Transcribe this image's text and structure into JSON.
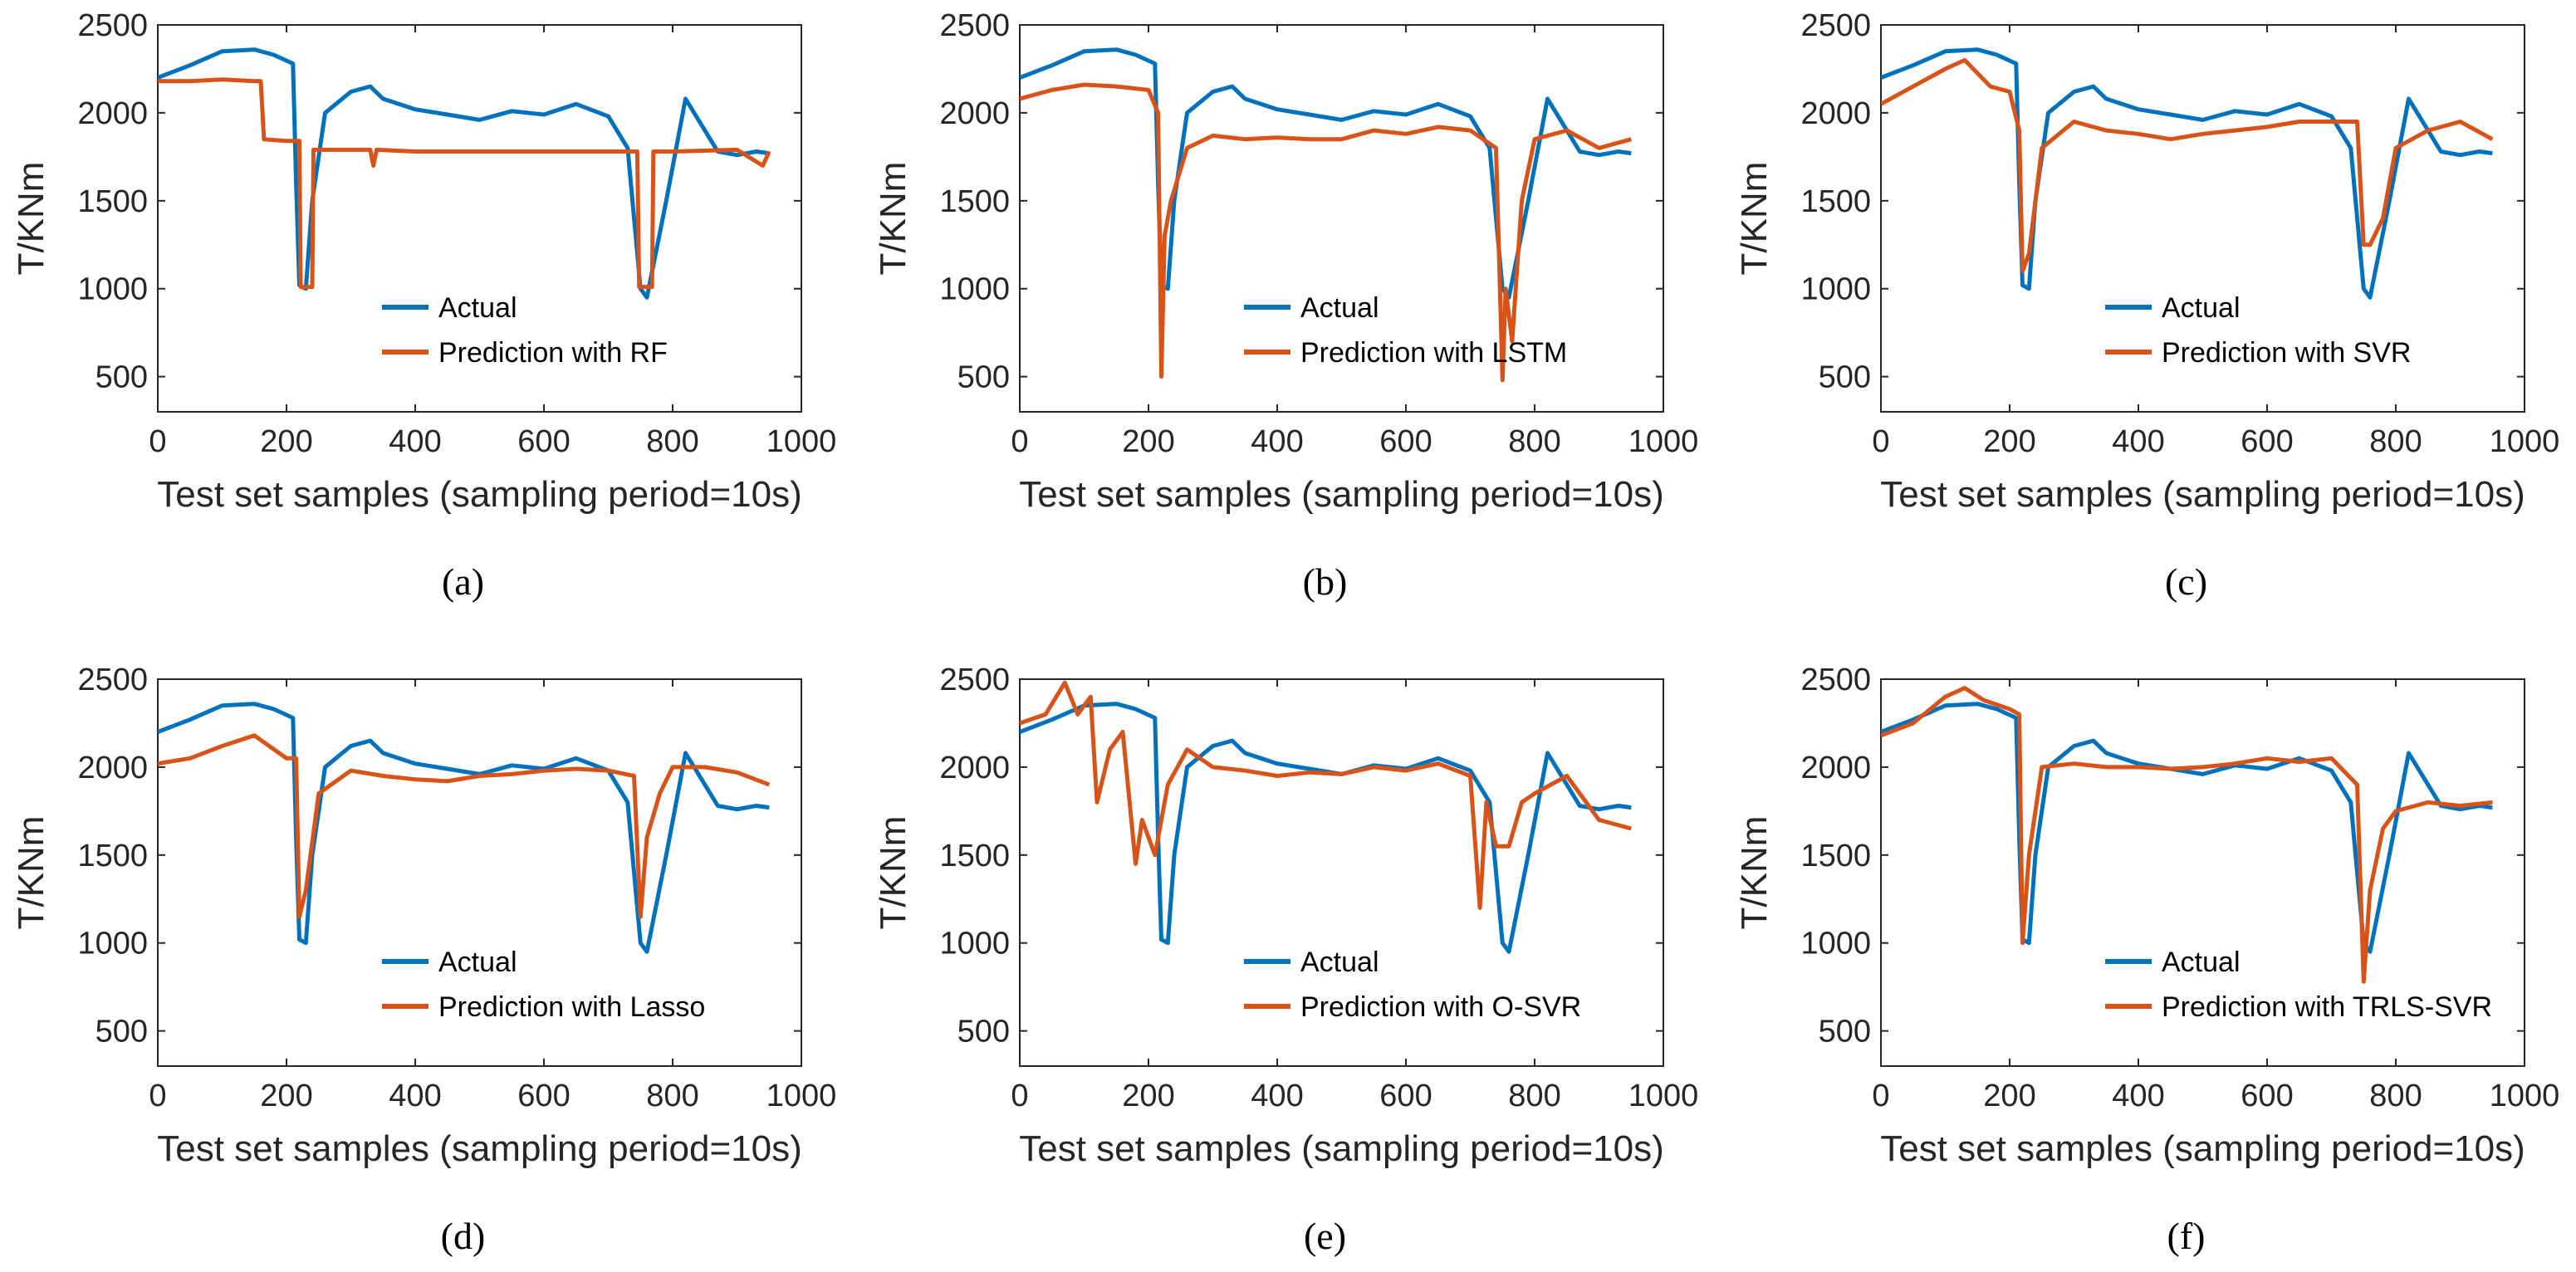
{
  "figure": {
    "series_colors": {
      "actual": "#0072BD",
      "prediction": "#D95319"
    }
  },
  "chart_data": [
    {
      "type": "line",
      "panel_label": "(a)",
      "title": "",
      "xlabel": "Test set samples (sampling period=10s)",
      "ylabel": "T/KNm",
      "xlim": [
        0,
        1000
      ],
      "ylim": [
        300,
        2500
      ],
      "xticks": [
        "0",
        "200",
        "400",
        "600",
        "800",
        "1000"
      ],
      "yticks": [
        "500",
        "1000",
        "1500",
        "2000",
        "2500"
      ],
      "grid": false,
      "legend_position": "bottom-right",
      "series": [
        {
          "name": "Actual",
          "color": "#0072BD",
          "x": [
            0,
            50,
            100,
            150,
            180,
            210,
            215,
            220,
            230,
            240,
            260,
            300,
            330,
            350,
            400,
            450,
            500,
            550,
            600,
            650,
            700,
            730,
            750,
            760,
            790,
            820,
            850,
            870,
            900,
            930,
            950
          ],
          "y": [
            2200,
            2270,
            2350,
            2360,
            2330,
            2280,
            1600,
            1020,
            1000,
            1500,
            2000,
            2120,
            2150,
            2080,
            2020,
            1990,
            1960,
            2010,
            1990,
            2050,
            1980,
            1800,
            1000,
            950,
            1500,
            2080,
            1900,
            1780,
            1760,
            1780,
            1770
          ]
        },
        {
          "name": "Prediction with RF",
          "color": "#D95319",
          "x": [
            0,
            50,
            100,
            150,
            160,
            165,
            200,
            220,
            222,
            240,
            242,
            330,
            335,
            340,
            400,
            500,
            600,
            700,
            745,
            748,
            768,
            770,
            800,
            900,
            940,
            950
          ],
          "y": [
            2180,
            2180,
            2190,
            2180,
            2180,
            1850,
            1840,
            1840,
            1010,
            1010,
            1790,
            1790,
            1700,
            1790,
            1780,
            1780,
            1780,
            1780,
            1780,
            1010,
            1010,
            1780,
            1780,
            1790,
            1700,
            1780
          ]
        }
      ]
    },
    {
      "type": "line",
      "panel_label": "(b)",
      "title": "",
      "xlabel": "Test set samples (sampling period=10s)",
      "ylabel": "T/KNm",
      "xlim": [
        0,
        1000
      ],
      "ylim": [
        300,
        2500
      ],
      "xticks": [
        "0",
        "200",
        "400",
        "600",
        "800",
        "1000"
      ],
      "yticks": [
        "500",
        "1000",
        "1500",
        "2000",
        "2500"
      ],
      "grid": false,
      "legend_position": "bottom-right",
      "series": [
        {
          "name": "Actual",
          "color": "#0072BD",
          "x": [
            0,
            50,
            100,
            150,
            180,
            210,
            215,
            220,
            230,
            240,
            260,
            300,
            330,
            350,
            400,
            450,
            500,
            550,
            600,
            650,
            700,
            730,
            750,
            760,
            790,
            820,
            850,
            870,
            900,
            930,
            950
          ],
          "y": [
            2200,
            2270,
            2350,
            2360,
            2330,
            2280,
            1600,
            1020,
            1000,
            1500,
            2000,
            2120,
            2150,
            2080,
            2020,
            1990,
            1960,
            2010,
            1990,
            2050,
            1980,
            1800,
            1000,
            950,
            1500,
            2080,
            1900,
            1780,
            1760,
            1780,
            1770
          ]
        },
        {
          "name": "Prediction with LSTM",
          "color": "#D95319",
          "x": [
            0,
            50,
            100,
            150,
            200,
            215,
            220,
            225,
            235,
            260,
            300,
            350,
            400,
            450,
            500,
            550,
            600,
            650,
            700,
            740,
            750,
            755,
            765,
            780,
            800,
            850,
            900,
            950
          ],
          "y": [
            2080,
            2130,
            2160,
            2150,
            2130,
            2000,
            500,
            1300,
            1500,
            1800,
            1870,
            1850,
            1860,
            1850,
            1850,
            1900,
            1880,
            1920,
            1900,
            1800,
            480,
            1000,
            700,
            1500,
            1850,
            1900,
            1800,
            1850
          ]
        }
      ]
    },
    {
      "type": "line",
      "panel_label": "(c)",
      "title": "",
      "xlabel": "Test set samples (sampling period=10s)",
      "ylabel": "T/KNm",
      "xlim": [
        0,
        1000
      ],
      "ylim": [
        300,
        2500
      ],
      "xticks": [
        "0",
        "200",
        "400",
        "600",
        "800",
        "1000"
      ],
      "yticks": [
        "500",
        "1000",
        "1500",
        "2000",
        "2500"
      ],
      "grid": false,
      "legend_position": "bottom-right",
      "series": [
        {
          "name": "Actual",
          "color": "#0072BD",
          "x": [
            0,
            50,
            100,
            150,
            180,
            210,
            215,
            220,
            230,
            240,
            260,
            300,
            330,
            350,
            400,
            450,
            500,
            550,
            600,
            650,
            700,
            730,
            750,
            760,
            790,
            820,
            850,
            870,
            900,
            930,
            950
          ],
          "y": [
            2200,
            2270,
            2350,
            2360,
            2330,
            2280,
            1600,
            1020,
            1000,
            1500,
            2000,
            2120,
            2150,
            2080,
            2020,
            1990,
            1960,
            2010,
            1990,
            2050,
            1980,
            1800,
            1000,
            950,
            1500,
            2080,
            1900,
            1780,
            1760,
            1780,
            1770
          ]
        },
        {
          "name": "Prediction with SVR",
          "color": "#D95319",
          "x": [
            0,
            50,
            100,
            130,
            170,
            200,
            215,
            220,
            230,
            250,
            300,
            350,
            400,
            450,
            500,
            550,
            600,
            650,
            700,
            740,
            750,
            760,
            780,
            800,
            850,
            900,
            950
          ],
          "y": [
            2050,
            2150,
            2250,
            2300,
            2150,
            2120,
            1900,
            1100,
            1200,
            1800,
            1950,
            1900,
            1880,
            1850,
            1880,
            1900,
            1920,
            1950,
            1950,
            1950,
            1250,
            1250,
            1400,
            1800,
            1900,
            1950,
            1850
          ]
        }
      ]
    },
    {
      "type": "line",
      "panel_label": "(d)",
      "title": "",
      "xlabel": "Test set samples (sampling period=10s)",
      "ylabel": "T/KNm",
      "xlim": [
        0,
        1000
      ],
      "ylim": [
        300,
        2500
      ],
      "xticks": [
        "0",
        "200",
        "400",
        "600",
        "800",
        "1000"
      ],
      "yticks": [
        "500",
        "1000",
        "1500",
        "2000",
        "2500"
      ],
      "grid": false,
      "legend_position": "bottom-right",
      "series": [
        {
          "name": "Actual",
          "color": "#0072BD",
          "x": [
            0,
            50,
            100,
            150,
            180,
            210,
            215,
            220,
            230,
            240,
            260,
            300,
            330,
            350,
            400,
            450,
            500,
            550,
            600,
            650,
            700,
            730,
            750,
            760,
            790,
            820,
            850,
            870,
            900,
            930,
            950
          ],
          "y": [
            2200,
            2270,
            2350,
            2360,
            2330,
            2280,
            1600,
            1020,
            1000,
            1500,
            2000,
            2120,
            2150,
            2080,
            2020,
            1990,
            1960,
            2010,
            1990,
            2050,
            1980,
            1800,
            1000,
            950,
            1500,
            2080,
            1900,
            1780,
            1760,
            1780,
            1770
          ]
        },
        {
          "name": "Prediction with Lasso",
          "color": "#D95319",
          "x": [
            0,
            50,
            100,
            150,
            200,
            215,
            220,
            230,
            250,
            300,
            350,
            400,
            450,
            500,
            550,
            600,
            650,
            700,
            740,
            750,
            760,
            780,
            800,
            850,
            900,
            950
          ],
          "y": [
            2020,
            2050,
            2120,
            2180,
            2050,
            2050,
            1150,
            1300,
            1850,
            1980,
            1950,
            1930,
            1920,
            1950,
            1960,
            1980,
            1990,
            1980,
            1950,
            1150,
            1600,
            1850,
            2000,
            2000,
            1970,
            1900
          ]
        }
      ]
    },
    {
      "type": "line",
      "panel_label": "(e)",
      "title": "",
      "xlabel": "Test set samples (sampling period=10s)",
      "ylabel": "T/KNm",
      "xlim": [
        0,
        1000
      ],
      "ylim": [
        300,
        2500
      ],
      "xticks": [
        "0",
        "200",
        "400",
        "600",
        "800",
        "1000"
      ],
      "yticks": [
        "500",
        "1000",
        "1500",
        "2000",
        "2500"
      ],
      "grid": false,
      "legend_position": "bottom-right",
      "series": [
        {
          "name": "Actual",
          "color": "#0072BD",
          "x": [
            0,
            50,
            100,
            150,
            180,
            210,
            215,
            220,
            230,
            240,
            260,
            300,
            330,
            350,
            400,
            450,
            500,
            550,
            600,
            650,
            700,
            730,
            750,
            760,
            790,
            820,
            850,
            870,
            900,
            930,
            950
          ],
          "y": [
            2200,
            2270,
            2350,
            2360,
            2330,
            2280,
            1600,
            1020,
            1000,
            1500,
            2000,
            2120,
            2150,
            2080,
            2020,
            1990,
            1960,
            2010,
            1990,
            2050,
            1980,
            1800,
            1000,
            950,
            1500,
            2080,
            1900,
            1780,
            1760,
            1780,
            1770
          ]
        },
        {
          "name": "Prediction with O-SVR",
          "color": "#D95319",
          "x": [
            0,
            40,
            70,
            90,
            110,
            120,
            140,
            160,
            180,
            190,
            210,
            230,
            260,
            300,
            350,
            400,
            450,
            500,
            550,
            600,
            650,
            700,
            715,
            725,
            740,
            760,
            780,
            800,
            850,
            900,
            950
          ],
          "y": [
            2250,
            2300,
            2480,
            2300,
            2400,
            1800,
            2100,
            2200,
            1450,
            1700,
            1500,
            1900,
            2100,
            2000,
            1980,
            1950,
            1970,
            1960,
            2000,
            1980,
            2020,
            1950,
            1200,
            1800,
            1550,
            1550,
            1800,
            1850,
            1950,
            1700,
            1650
          ]
        }
      ]
    },
    {
      "type": "line",
      "panel_label": "(f)",
      "title": "",
      "xlabel": "Test set samples (sampling period=10s)",
      "ylabel": "T/KNm",
      "xlim": [
        0,
        1000
      ],
      "ylim": [
        300,
        2500
      ],
      "xticks": [
        "0",
        "200",
        "400",
        "600",
        "800",
        "1000"
      ],
      "yticks": [
        "500",
        "1000",
        "1500",
        "2000",
        "2500"
      ],
      "grid": false,
      "legend_position": "bottom-right",
      "series": [
        {
          "name": "Actual",
          "color": "#0072BD",
          "x": [
            0,
            50,
            100,
            150,
            180,
            210,
            215,
            220,
            230,
            240,
            260,
            300,
            330,
            350,
            400,
            450,
            500,
            550,
            600,
            650,
            700,
            730,
            750,
            760,
            790,
            820,
            850,
            870,
            900,
            930,
            950
          ],
          "y": [
            2200,
            2270,
            2350,
            2360,
            2330,
            2280,
            1600,
            1020,
            1000,
            1500,
            2000,
            2120,
            2150,
            2080,
            2020,
            1990,
            1960,
            2010,
            1990,
            2050,
            1980,
            1800,
            1000,
            950,
            1500,
            2080,
            1900,
            1780,
            1760,
            1780,
            1770
          ]
        },
        {
          "name": "Prediction with TRLS-SVR",
          "color": "#D95319",
          "x": [
            0,
            50,
            100,
            130,
            160,
            200,
            215,
            220,
            230,
            250,
            300,
            350,
            400,
            450,
            500,
            550,
            600,
            650,
            700,
            740,
            750,
            760,
            780,
            800,
            850,
            900,
            950
          ],
          "y": [
            2180,
            2250,
            2400,
            2450,
            2380,
            2330,
            2300,
            1000,
            1500,
            2000,
            2020,
            2000,
            2000,
            1990,
            2000,
            2020,
            2050,
            2030,
            2050,
            1900,
            780,
            1300,
            1650,
            1750,
            1800,
            1780,
            1800
          ]
        }
      ]
    }
  ]
}
